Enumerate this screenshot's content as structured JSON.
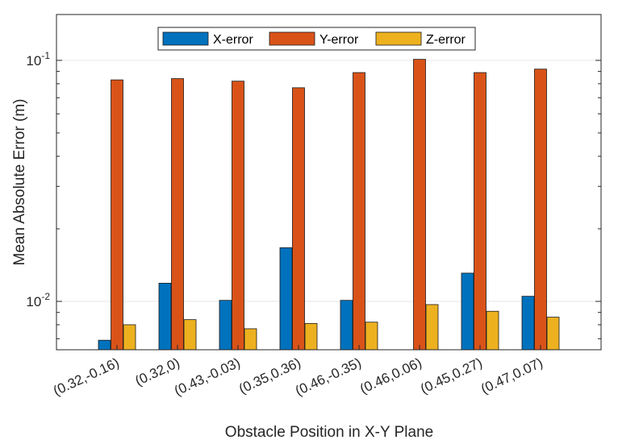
{
  "chart_data": {
    "type": "bar",
    "title": "",
    "xlabel": "Obstacle Position in X-Y Plane",
    "ylabel": "Mean Absolute Error (m)",
    "yscale": "log",
    "ylim": [
      0.0063,
      0.155
    ],
    "yticks": [
      {
        "value": 0.01,
        "base": "10",
        "exp": "-2"
      },
      {
        "value": 0.1,
        "base": "10",
        "exp": "-1"
      }
    ],
    "categories": [
      "(0.32,-0.16)",
      "(0.32,0)",
      "(0.43,-0.03)",
      "(0.35,0.36)",
      "(0.46,-0.35)",
      "(0.46,0.06)",
      "(0.45,0.27)",
      "(0.47,0.07)"
    ],
    "series": [
      {
        "name": "X-error",
        "color": "#0072BD",
        "values": [
          0.0069,
          0.0119,
          0.0101,
          0.0167,
          0.0101,
          null,
          0.0131,
          0.0105
        ]
      },
      {
        "name": "Y-error",
        "color": "#D95319",
        "values": [
          0.083,
          0.084,
          0.082,
          0.077,
          0.089,
          0.101,
          0.089,
          0.092
        ]
      },
      {
        "name": "Z-error",
        "color": "#EDB120",
        "values": [
          0.008,
          0.0084,
          0.0077,
          0.0081,
          0.0082,
          0.0097,
          0.0091,
          0.0086
        ]
      }
    ],
    "legend": {
      "placement": "top-center",
      "orientation": "horizontal"
    },
    "grid": {
      "y_major": true
    }
  }
}
